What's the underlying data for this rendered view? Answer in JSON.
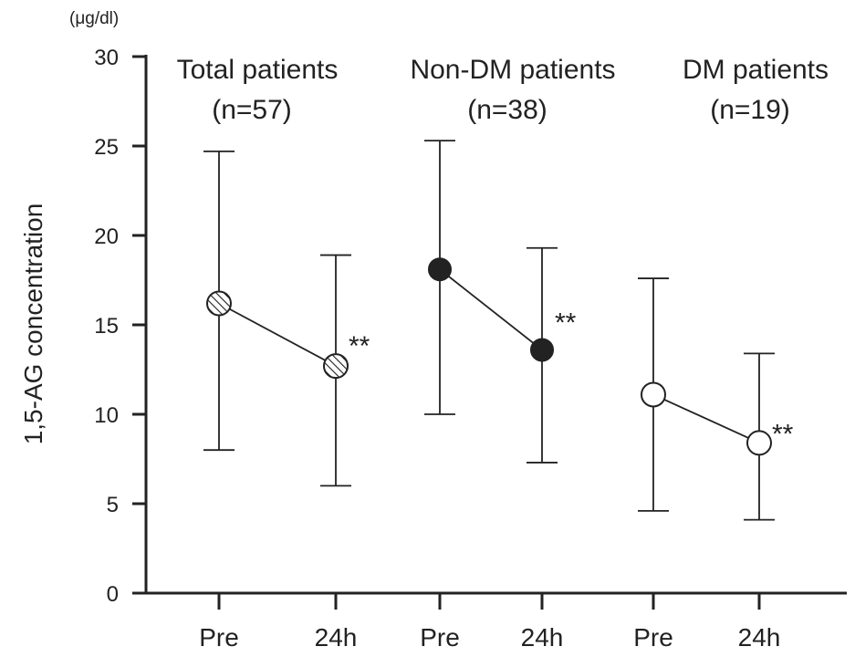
{
  "chart_data": {
    "type": "line",
    "y_unit": "(μg/dl)",
    "ylabel": "1,5-AG concentration",
    "ylim": [
      0,
      30
    ],
    "yticks": [
      0,
      5,
      10,
      15,
      20,
      25,
      30
    ],
    "groups": [
      {
        "title": "Total patients",
        "n_label": "(n=57)",
        "marker": "hatched",
        "significance": "**",
        "points": [
          {
            "x": "Pre",
            "mean": 16.2,
            "low": 8.0,
            "high": 24.7
          },
          {
            "x": "24h",
            "mean": 12.7,
            "low": 6.0,
            "high": 18.9
          }
        ]
      },
      {
        "title": "Non-DM patients",
        "n_label": "(n=38)",
        "marker": "filled",
        "significance": "**",
        "points": [
          {
            "x": "Pre",
            "mean": 18.1,
            "low": 10.0,
            "high": 25.3
          },
          {
            "x": "24h",
            "mean": 13.6,
            "low": 7.3,
            "high": 19.3
          }
        ]
      },
      {
        "title": "DM patients",
        "n_label": "(n=19)",
        "marker": "open",
        "significance": "**",
        "points": [
          {
            "x": "Pre",
            "mean": 11.1,
            "low": 4.6,
            "high": 17.6
          },
          {
            "x": "24h",
            "mean": 8.4,
            "low": 4.1,
            "high": 13.4
          }
        ]
      }
    ]
  }
}
